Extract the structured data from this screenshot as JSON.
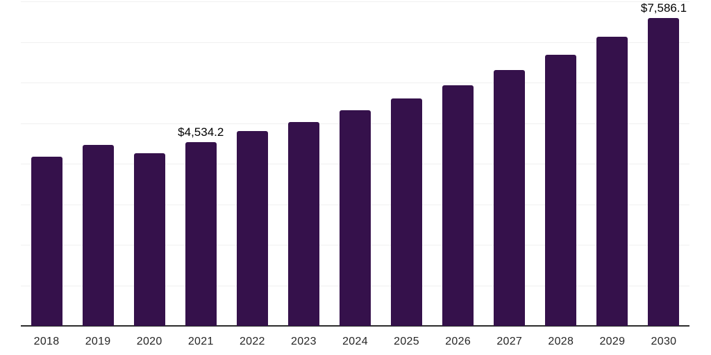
{
  "chart_data": {
    "type": "bar",
    "title": "",
    "xlabel": "",
    "ylabel": "",
    "categories": [
      "2018",
      "2019",
      "2020",
      "2021",
      "2022",
      "2023",
      "2024",
      "2025",
      "2026",
      "2027",
      "2028",
      "2029",
      "2030"
    ],
    "values": [
      4165,
      4460,
      4250,
      4534.2,
      4795,
      5020,
      5320,
      5610,
      5940,
      6300,
      6690,
      7125,
      7586.1
    ],
    "annotations": [
      {
        "category": "2021",
        "text": "$4,534.2"
      },
      {
        "category": "2030",
        "text": "$7,586.1"
      }
    ],
    "ylim": [
      0,
      8000
    ],
    "grid": true,
    "grid_interval": 1000,
    "legend": false,
    "y_axis_labels_visible": false,
    "colors": {
      "bar": "#35114B",
      "grid": "#f0f0f0",
      "axis": "#2b2b2b",
      "tick_text": "#262626",
      "annotation_text": "#000000",
      "background": "#ffffff"
    }
  }
}
